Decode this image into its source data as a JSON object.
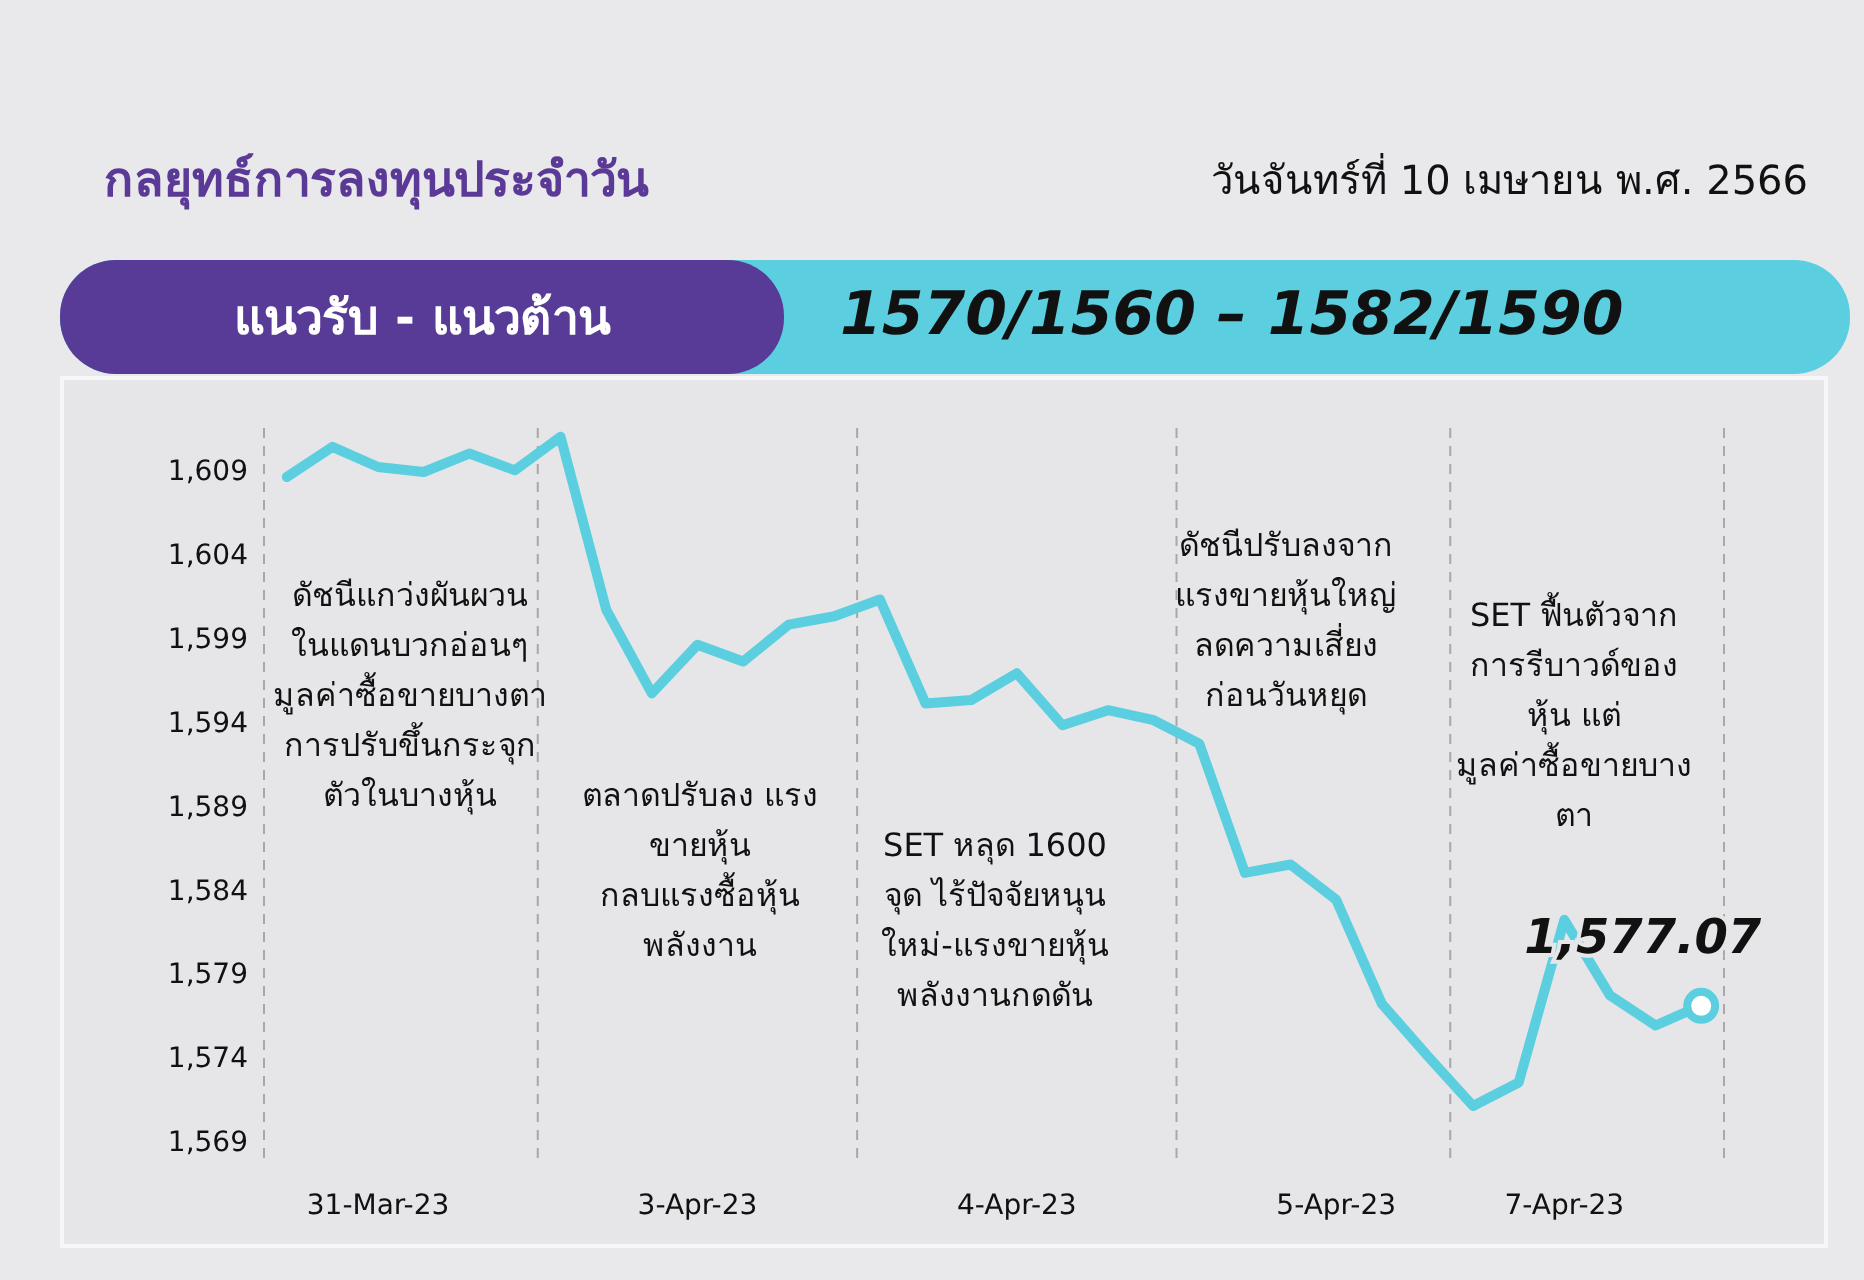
{
  "chart_data": {
    "type": "line",
    "title": "กลยุทธ์การลงทุนประจำวัน",
    "subtitle": "วันจันทร์ที่ 10 เมษายน พ.ศ. 2566",
    "annotations": [
      "แนวรับ - แนวต้าน",
      "1570/1560 – 1582/1590",
      "ดัชนีแกว่งผันผวน\nในแดนบวกอ่อนๆ\nมูลค่าซื้อขายบางตา\nการปรับขึ้นกระจุก\nตัวในบางหุ้น",
      "ตลาดปรับลง แรง\nขายหุ้น\nกลบแรงซื้อหุ้น\nพลังงาน",
      "SET หลุด 1600\nจุด ไร้ปัจจัยหนุน\nใหม่-แรงขายหุ้น\nพลังงานกดดัน",
      "ดัชนีปรับลงจาก\nแรงขายหุ้นใหญ่\nลดความเสี่ยง\nก่อนวันหยุด",
      "SET ฟื้นตัวจาก\nการรีบาวด์ของ\nหุ้น แต่\nมูลค่าซื้อขายบาง\nตา"
    ],
    "categories": [
      null,
      null,
      "31-Mar-23",
      null,
      null,
      null,
      null,
      null,
      null,
      "3-Apr-23",
      null,
      null,
      null,
      null,
      null,
      null,
      "4-Apr-23",
      null,
      null,
      null,
      null,
      null,
      null,
      "5-Apr-23",
      null,
      null,
      null,
      null,
      "7-Apr-23",
      null,
      null,
      null
    ],
    "series": [
      {
        "color": "#5bcfdf",
        "values": [
          1608.6,
          1610.4,
          1609.2,
          1608.9,
          1610.0,
          1609.0,
          1611.0,
          1600.7,
          1595.7,
          1598.6,
          1597.6,
          1599.8,
          1600.3,
          1601.3,
          1595.1,
          1595.3,
          1596.9,
          1593.8,
          1594.7,
          1594.1,
          1592.7,
          1585.0,
          1585.5,
          1583.4,
          1577.2,
          1574.1,
          1571.1,
          1572.5,
          1582.2,
          1577.7,
          1575.9,
          1577.1
        ]
      },
      {
        "type": "scatter",
        "color": "#5bcfdf",
        "marker": "circle",
        "values": [
          null,
          null,
          null,
          null,
          null,
          null,
          null,
          null,
          null,
          null,
          null,
          null,
          null,
          null,
          null,
          null,
          null,
          null,
          null,
          null,
          null,
          null,
          null,
          null,
          null,
          null,
          null,
          null,
          null,
          null,
          null,
          1577.07
        ],
        "value_labels": [
          null,
          null,
          null,
          null,
          null,
          null,
          null,
          null,
          null,
          null,
          null,
          null,
          null,
          null,
          null,
          null,
          null,
          null,
          null,
          null,
          null,
          null,
          null,
          null,
          null,
          null,
          null,
          null,
          null,
          null,
          null,
          "1,577.07"
        ]
      }
    ],
    "ylim": [
      1568,
      1612
    ],
    "yticks": [
      {
        "value": 1569,
        "label": "1,569"
      },
      {
        "value": 1574,
        "label": "1,574"
      },
      {
        "value": 1579,
        "label": "1,579"
      },
      {
        "value": 1584,
        "label": "1,584"
      },
      {
        "value": 1589,
        "label": "1,589"
      },
      {
        "value": 1594,
        "label": "1,594"
      },
      {
        "value": 1599,
        "label": "1,599"
      },
      {
        "value": 1604,
        "label": "1,604"
      },
      {
        "value": 1609,
        "label": "1,609"
      }
    ],
    "grid": false,
    "marker": "none"
  }
}
